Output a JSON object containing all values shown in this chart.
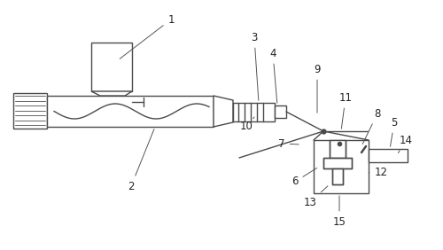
{
  "bg_color": "#ffffff",
  "line_color": "#4a4a4a",
  "label_color": "#222222",
  "figsize": [
    5.0,
    2.82
  ],
  "dpi": 100
}
